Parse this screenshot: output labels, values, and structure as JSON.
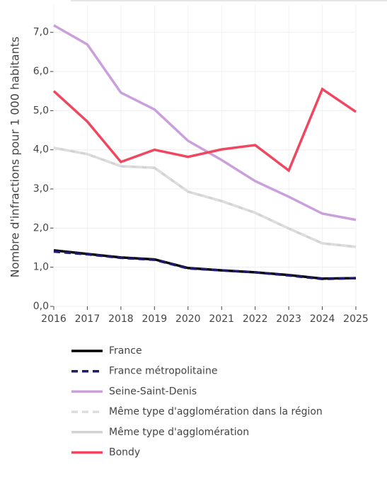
{
  "chart_data": {
    "type": "line",
    "y_label": "Nombre d'infractions pour 1 000 habitants",
    "x": [
      2016,
      2017,
      2018,
      2019,
      2020,
      2021,
      2022,
      2023,
      2024,
      2025
    ],
    "xlim": [
      2016,
      2025
    ],
    "xticks": [
      2016,
      2017,
      2018,
      2019,
      2020,
      2021,
      2022,
      2023,
      2024,
      2025
    ],
    "ylim": [
      0,
      7.7
    ],
    "yticks": [
      {
        "value": 0,
        "label": "0,0"
      },
      {
        "value": 1,
        "label": "1,0"
      },
      {
        "value": 2,
        "label": "2,0"
      },
      {
        "value": 3,
        "label": "3,0"
      },
      {
        "value": 4,
        "label": "4,0"
      },
      {
        "value": 5,
        "label": "5,0"
      },
      {
        "value": 6,
        "label": "6,0"
      },
      {
        "value": 7,
        "label": "7,0"
      }
    ],
    "grid": true,
    "series": [
      {
        "name": "France",
        "color": "#000000",
        "dash": false,
        "values": [
          1.43,
          1.34,
          1.25,
          1.2,
          0.98,
          0.92,
          0.87,
          0.8,
          0.71,
          0.72
        ]
      },
      {
        "name": "France métropolitaine",
        "color": "#1f1a6e",
        "dash": true,
        "values": [
          1.4,
          1.33,
          1.24,
          1.19,
          0.97,
          0.92,
          0.87,
          0.79,
          0.7,
          0.72
        ]
      },
      {
        "name": "Seine-Saint-Denis",
        "color": "#c9a0dc",
        "dash": false,
        "values": [
          7.18,
          6.69,
          5.46,
          5.03,
          4.23,
          3.74,
          3.2,
          2.8,
          2.37,
          2.21
        ]
      },
      {
        "name": "Même type d'agglomération dans la région",
        "color": "#dddddd",
        "dash": true,
        "values": [
          4.05,
          3.89,
          3.58,
          3.54,
          2.93,
          2.69,
          2.39,
          1.99,
          1.61,
          1.52
        ]
      },
      {
        "name": "Même type d'agglomération",
        "color": "#d3d3d3",
        "dash": false,
        "values": [
          4.05,
          3.89,
          3.58,
          3.54,
          2.93,
          2.69,
          2.39,
          1.99,
          1.61,
          1.52
        ]
      },
      {
        "name": "Bondy",
        "color": "#f0465f",
        "dash": false,
        "values": [
          5.5,
          4.72,
          3.69,
          4.0,
          3.82,
          4.01,
          4.12,
          3.47,
          5.55,
          4.97
        ]
      }
    ]
  }
}
